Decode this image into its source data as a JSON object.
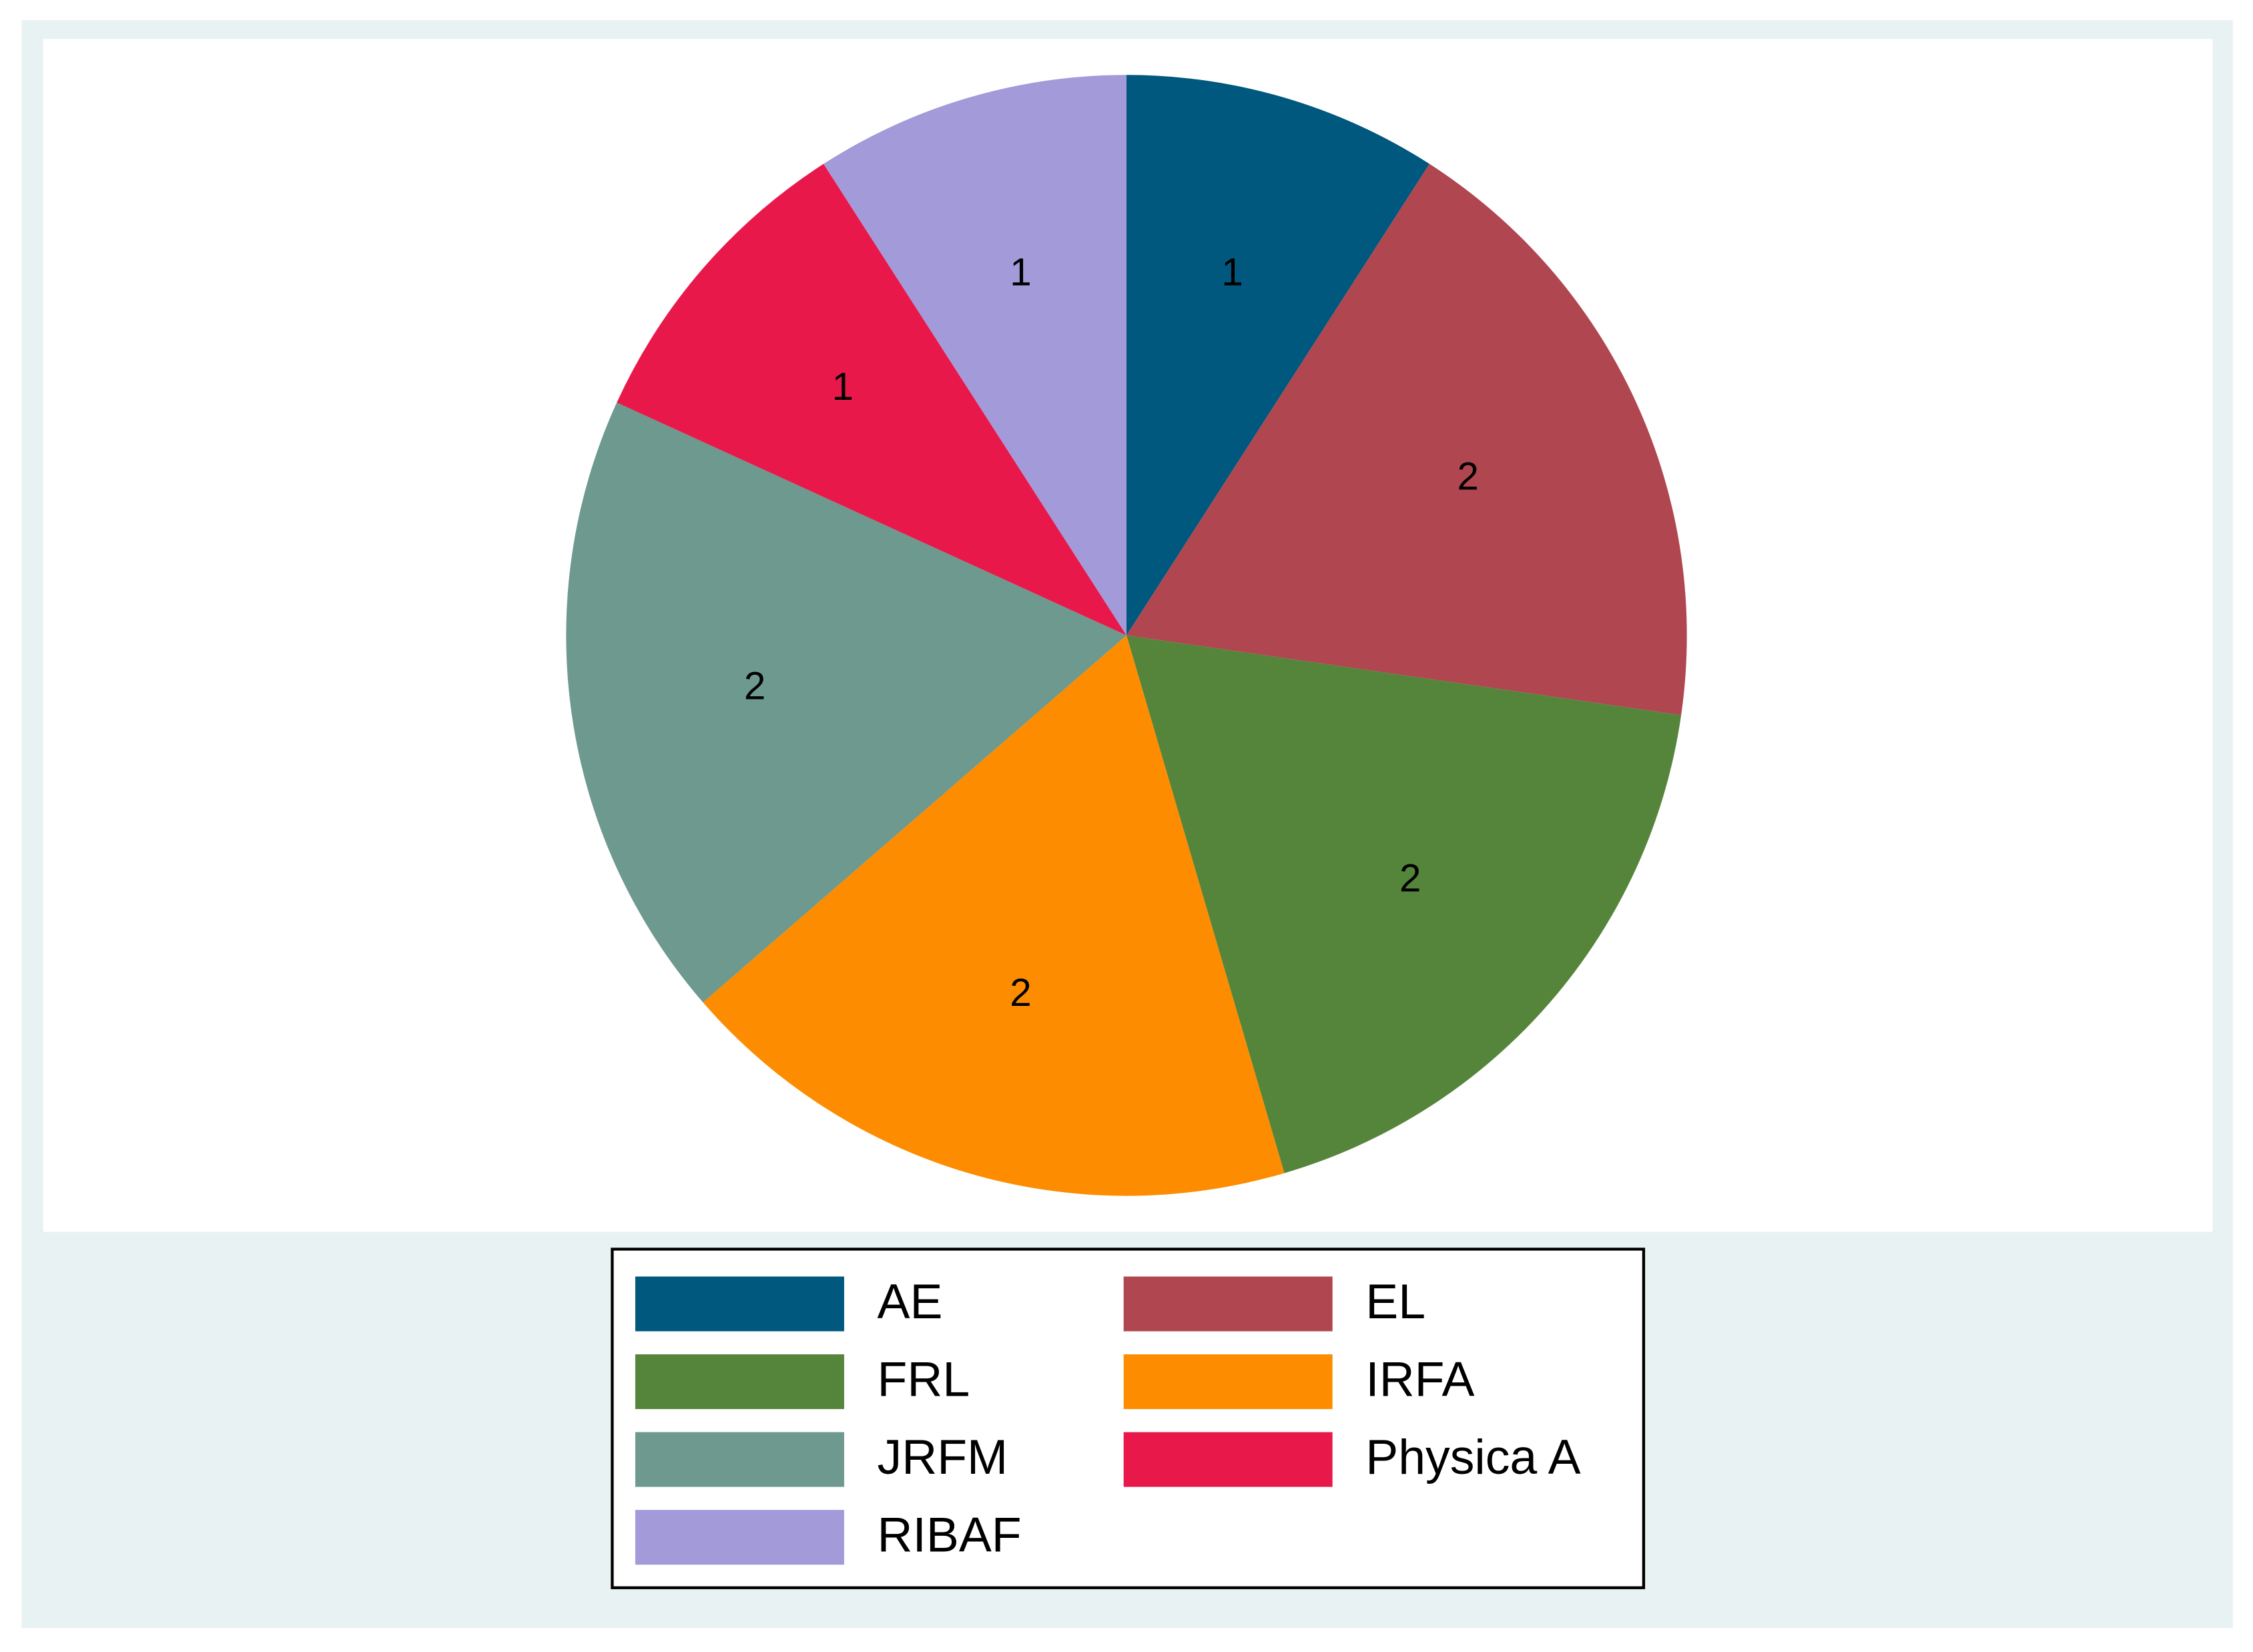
{
  "chart_data": {
    "type": "pie",
    "categories": [
      "AE",
      "EL",
      "FRL",
      "IRFA",
      "JRFM",
      "Physica A",
      "RIBAF"
    ],
    "values": [
      1,
      2,
      2,
      2,
      2,
      1,
      1
    ],
    "colors": [
      "#00587e",
      "#b0464f",
      "#55843b",
      "#fd8c00",
      "#6d998e",
      "#e8194a",
      "#a29ad9"
    ],
    "legend": "bottom"
  }
}
